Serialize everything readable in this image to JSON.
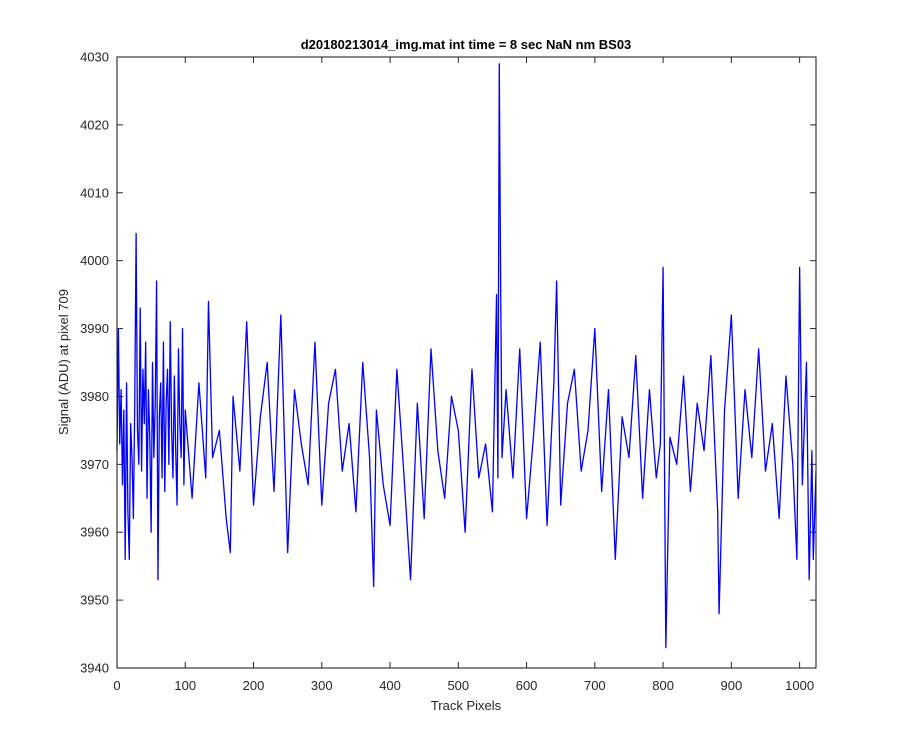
{
  "chart_data": {
    "type": "line",
    "title": "d20180213014_img.mat int time = 8 sec  NaN nm BS03",
    "xlabel": "Track Pixels",
    "ylabel": "Signal (ADU) at pixel 709",
    "xlim": [
      0,
      1024
    ],
    "ylim": [
      3940,
      4030
    ],
    "xticks": [
      0,
      100,
      200,
      300,
      400,
      500,
      600,
      700,
      800,
      900,
      1000
    ],
    "yticks": [
      3940,
      3950,
      3960,
      3970,
      3980,
      3990,
      4000,
      4010,
      4020,
      4030
    ],
    "grid": false,
    "line_color": "#0000ff",
    "series": [
      {
        "x": [
          0,
          2,
          4,
          6,
          8,
          10,
          12,
          14,
          16,
          18,
          20,
          22,
          24,
          26,
          28,
          30,
          32,
          34,
          36,
          38,
          40,
          42,
          44,
          46,
          48,
          50,
          52,
          54,
          56,
          58,
          60,
          62,
          64,
          66,
          68,
          70,
          72,
          74,
          76,
          78,
          80,
          82,
          84,
          86,
          88,
          90,
          92,
          94,
          96,
          98,
          100,
          110,
          120,
          130,
          134,
          140,
          150,
          160,
          166,
          170,
          180,
          190,
          200,
          210,
          220,
          230,
          240,
          250,
          260,
          270,
          280,
          290,
          300,
          310,
          320,
          330,
          340,
          350,
          360,
          370,
          376,
          380,
          390,
          400,
          410,
          420,
          430,
          440,
          450,
          460,
          470,
          480,
          490,
          500,
          510,
          520,
          530,
          540,
          550,
          556,
          558,
          560,
          562,
          564,
          570,
          580,
          590,
          600,
          610,
          620,
          630,
          640,
          644,
          650,
          660,
          670,
          680,
          690,
          700,
          710,
          720,
          730,
          740,
          750,
          760,
          770,
          780,
          790,
          796,
          800,
          804,
          810,
          820,
          830,
          840,
          850,
          860,
          870,
          880,
          882,
          890,
          900,
          910,
          920,
          930,
          940,
          950,
          960,
          970,
          980,
          990,
          996,
          1000,
          1004,
          1010,
          1014,
          1018,
          1020,
          1024
        ],
        "y": [
          3972,
          3990,
          3973,
          3981,
          3967,
          3978,
          3956,
          3982,
          3963,
          3956,
          3976,
          3971,
          3962,
          3979,
          4004,
          3975,
          3970,
          3993,
          3969,
          3984,
          3976,
          3988,
          3965,
          3981,
          3974,
          3960,
          3985,
          3971,
          3979,
          3997,
          3953,
          3977,
          3982,
          3968,
          3988,
          3966,
          3979,
          3984,
          3970,
          3991,
          3975,
          3968,
          3983,
          3972,
          3964,
          3987,
          3976,
          3971,
          3990,
          3967,
          3978,
          3965,
          3982,
          3968,
          3994,
          3971,
          3975,
          3962,
          3957,
          3980,
          3969,
          3991,
          3964,
          3977,
          3985,
          3966,
          3992,
          3957,
          3981,
          3973,
          3967,
          3988,
          3964,
          3979,
          3984,
          3969,
          3976,
          3963,
          3985,
          3971,
          3952,
          3978,
          3967,
          3961,
          3984,
          3969,
          3953,
          3979,
          3962,
          3987,
          3972,
          3965,
          3980,
          3975,
          3960,
          3984,
          3968,
          3973,
          3963,
          3995,
          3968,
          4029,
          3997,
          3971,
          3981,
          3968,
          3987,
          3962,
          3974,
          3988,
          3961,
          3982,
          3997,
          3964,
          3979,
          3984,
          3969,
          3975,
          3990,
          3966,
          3981,
          3956,
          3977,
          3971,
          3986,
          3965,
          3981,
          3968,
          3973,
          3999,
          3943,
          3974,
          3970,
          3983,
          3966,
          3979,
          3972,
          3986,
          3963,
          3948,
          3978,
          3992,
          3965,
          3981,
          3971,
          3987,
          3969,
          3976,
          3962,
          3983,
          3970,
          3956,
          3999,
          3967,
          3985,
          3953,
          3972,
          3956,
          3969
        ]
      }
    ]
  }
}
